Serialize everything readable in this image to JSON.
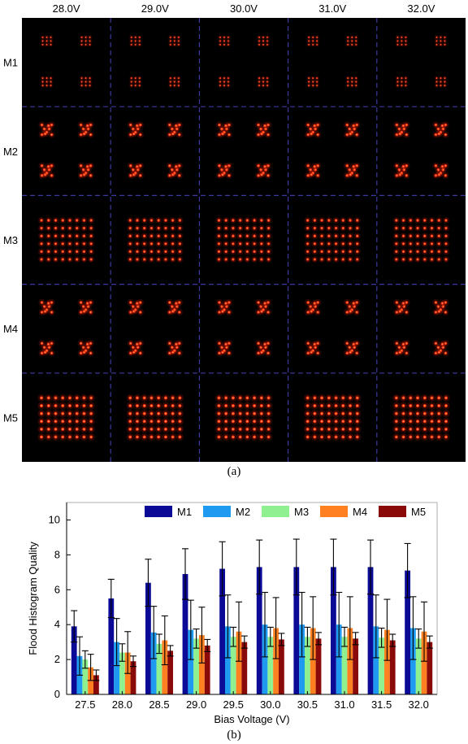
{
  "panel_a": {
    "caption": "(a)",
    "columns": [
      "28.0V",
      "29.0V",
      "30.0V",
      "31.0V",
      "32.0V"
    ],
    "rows": [
      "M1",
      "M2",
      "M3",
      "M4",
      "M5"
    ],
    "divider_color": "#3a3aa0",
    "spot_color": "#ff2a10",
    "background_color": "#000000"
  },
  "panel_b": {
    "caption": "(b)"
  },
  "chart_data": {
    "type": "bar",
    "xlabel": "Bias Voltage (V)",
    "ylabel": "Flood Histogram Quality",
    "ylim": [
      0,
      11
    ],
    "yticks": [
      0,
      2,
      4,
      6,
      8,
      10
    ],
    "categories": [
      "27.5",
      "28.0",
      "28.5",
      "29.0",
      "29.5",
      "30.0",
      "30.5",
      "31.0",
      "31.5",
      "32.0"
    ],
    "legend_position": "top-right",
    "error_bars": true,
    "series": [
      {
        "name": "M1",
        "color": "#0a0a96",
        "values": [
          3.9,
          5.5,
          6.4,
          6.9,
          7.2,
          7.3,
          7.3,
          7.3,
          7.3,
          7.1
        ],
        "errors": [
          0.9,
          1.1,
          1.35,
          1.45,
          1.55,
          1.55,
          1.6,
          1.6,
          1.55,
          1.55
        ]
      },
      {
        "name": "M2",
        "color": "#1e9af0",
        "values": [
          2.2,
          3.0,
          3.55,
          3.7,
          3.9,
          4.0,
          4.0,
          4.0,
          3.9,
          3.8
        ],
        "errors": [
          1.1,
          1.35,
          1.5,
          1.7,
          1.8,
          1.85,
          1.85,
          1.85,
          1.8,
          1.8
        ]
      },
      {
        "name": "M3",
        "color": "#8ff08f",
        "values": [
          2.0,
          2.4,
          2.9,
          3.2,
          3.3,
          3.3,
          3.3,
          3.3,
          3.25,
          3.2
        ],
        "errors": [
          0.5,
          0.5,
          0.55,
          0.55,
          0.55,
          0.55,
          0.55,
          0.55,
          0.55,
          0.55
        ]
      },
      {
        "name": "M4",
        "color": "#ff8020",
        "values": [
          1.55,
          2.4,
          3.1,
          3.4,
          3.6,
          3.8,
          3.8,
          3.8,
          3.7,
          3.6
        ],
        "errors": [
          0.75,
          1.2,
          1.4,
          1.6,
          1.7,
          1.75,
          1.8,
          1.8,
          1.75,
          1.7
        ]
      },
      {
        "name": "M5",
        "color": "#8a0a0a",
        "values": [
          1.1,
          1.9,
          2.5,
          2.8,
          3.0,
          3.15,
          3.2,
          3.2,
          3.1,
          3.0
        ],
        "errors": [
          0.3,
          0.3,
          0.3,
          0.35,
          0.35,
          0.35,
          0.35,
          0.35,
          0.35,
          0.35
        ]
      }
    ]
  }
}
